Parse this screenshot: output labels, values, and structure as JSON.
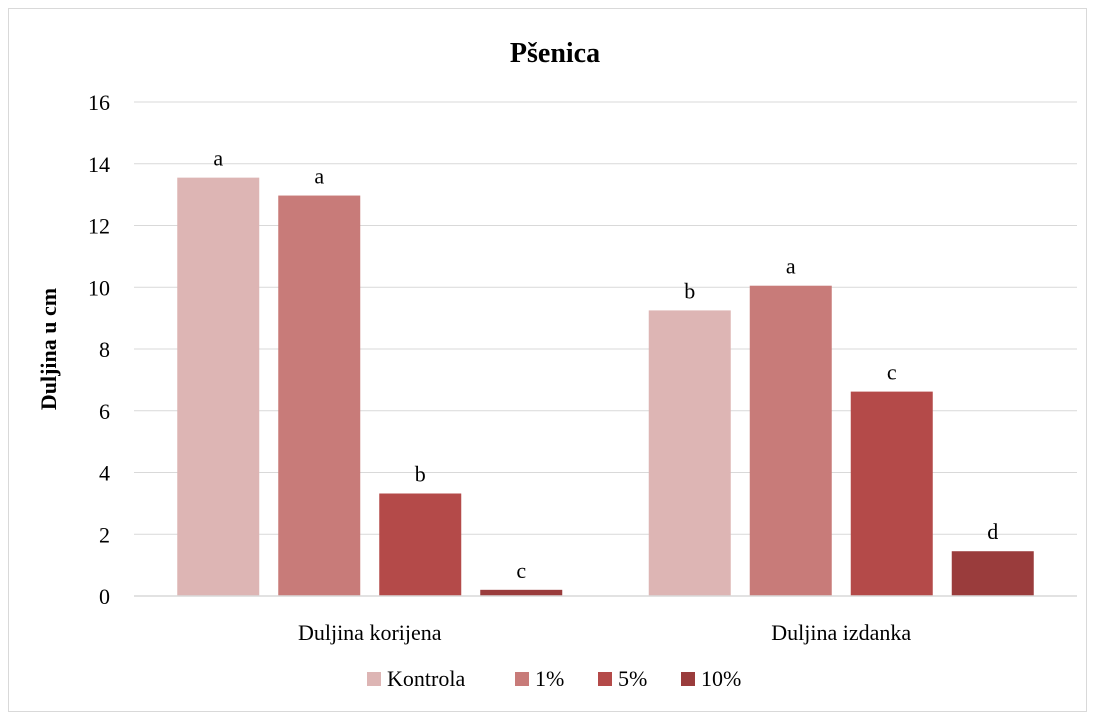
{
  "chart_data": {
    "type": "bar",
    "title": "Pšenica",
    "xlabel": "",
    "ylabel": "Duljina u cm",
    "ylim": [
      0,
      16
    ],
    "yticks": [
      0,
      2,
      4,
      6,
      8,
      10,
      12,
      14,
      16
    ],
    "grid": true,
    "legend_position": "bottom",
    "categories": [
      "Duljina korijena",
      "Duljina izdanka"
    ],
    "series": [
      {
        "name": "Kontrola",
        "color": "#ddb5b4",
        "values": [
          13.55,
          9.25
        ],
        "labels": [
          "a",
          "b"
        ]
      },
      {
        "name": "1%",
        "color": "#c87b79",
        "values": [
          12.97,
          10.05
        ],
        "labels": [
          "a",
          "a"
        ]
      },
      {
        "name": "5%",
        "color": "#b44a49",
        "values": [
          3.32,
          6.62
        ],
        "labels": [
          "b",
          "c"
        ]
      },
      {
        "name": "10%",
        "color": "#9a3c3c",
        "values": [
          0.2,
          1.45
        ],
        "labels": [
          "c",
          "d"
        ]
      }
    ]
  }
}
